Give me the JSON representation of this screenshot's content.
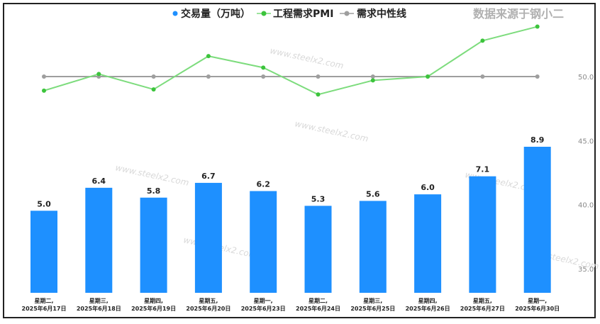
{
  "source_note": "数据来源于钢小二",
  "watermark": "www.steelx2.com",
  "colors": {
    "bar": "#1e90ff",
    "pmi": "#7ddc7d",
    "pmi_point": "#3cc43c",
    "neutral": "#9e9e9e"
  },
  "chart_data": {
    "type": "bar",
    "title": "",
    "categories": [
      [
        "星期二,",
        "2025年6月17日"
      ],
      [
        "星期三,",
        "2025年6月18日"
      ],
      [
        "星期四,",
        "2025年6月19日"
      ],
      [
        "星期五,",
        "2025年6月20日"
      ],
      [
        "星期一,",
        "2025年6月23日"
      ],
      [
        "星期二,",
        "2025年6月24日"
      ],
      [
        "星期三,",
        "2025年6月25日"
      ],
      [
        "星期四,",
        "2025年6月26日"
      ],
      [
        "星期五,",
        "2025年6月27日"
      ],
      [
        "星期一,",
        "2025年6月30日"
      ]
    ],
    "series": [
      {
        "name": "交易量（万吨）",
        "type": "bar",
        "values": [
          5.0,
          6.4,
          5.8,
          6.7,
          6.2,
          5.3,
          5.6,
          6.0,
          7.1,
          8.9
        ],
        "value_labels": [
          "5.0",
          "6.4",
          "5.8",
          "6.7",
          "6.2",
          "5.3",
          "5.6",
          "6.0",
          "7.1",
          "8.9"
        ]
      },
      {
        "name": "工程需求PMI",
        "type": "line",
        "axis": "right",
        "values": [
          48.9,
          50.2,
          49.0,
          51.6,
          50.7,
          48.6,
          49.7,
          50.0,
          52.8,
          53.9
        ]
      },
      {
        "name": "需求中性线",
        "type": "line",
        "axis": "right",
        "values": [
          50.0,
          50.0,
          50.0,
          50.0,
          50.0,
          50.0,
          50.0,
          50.0,
          50.0,
          50.0
        ]
      }
    ],
    "right_axis": {
      "ticks": [
        "35.0",
        "40.0",
        "45.0",
        "50.0"
      ],
      "tick_values": [
        35,
        40,
        45,
        50
      ],
      "range": [
        32.8,
        55.8
      ]
    },
    "bar_axis": {
      "range": [
        0,
        10.2
      ]
    },
    "legend_position": "top-center",
    "grid": false
  }
}
